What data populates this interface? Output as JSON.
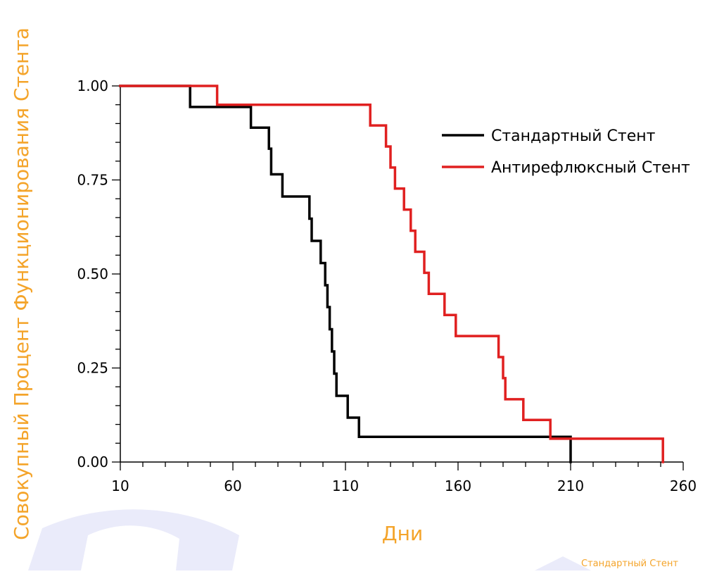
{
  "colors": {
    "axis_title": "#F4A42A",
    "standard": "#000000",
    "antireflux": "#E02020",
    "watermark": "#EAEBFA"
  },
  "footer_note": "Стандартный Стент",
  "chart_data": {
    "type": "line",
    "step": "post",
    "title": "",
    "xlabel": "Дни",
    "ylabel": "Совокупный Процент Функционирования Стента",
    "xlim": [
      10,
      260
    ],
    "ylim": [
      0,
      1
    ],
    "xticks": [
      10,
      60,
      110,
      160,
      210,
      260
    ],
    "xtick_labels": [
      "10",
      "60",
      "110",
      "160",
      "210",
      "260"
    ],
    "yticks": [
      0,
      0.25,
      0.5,
      0.75,
      1
    ],
    "ytick_labels": [
      "0.00",
      "0.25",
      "0.50",
      "0.75",
      "1.00"
    ],
    "grid": false,
    "legend_position": "upper-right",
    "series": [
      {
        "name": "Стандартный Стент",
        "color_key": "standard",
        "x": [
          10,
          41,
          68,
          76,
          77,
          82,
          94,
          95,
          99,
          101,
          102,
          103,
          104,
          105,
          106,
          111,
          116,
          210,
          210
        ],
        "y": [
          1.0,
          0.944,
          0.889,
          0.833,
          0.765,
          0.706,
          0.647,
          0.588,
          0.529,
          0.47,
          0.412,
          0.353,
          0.294,
          0.235,
          0.176,
          0.118,
          0.067,
          0.067,
          0.0
        ]
      },
      {
        "name": "Антирефлюксный Стент",
        "color_key": "antireflux",
        "x": [
          10,
          53,
          121,
          128,
          130,
          132,
          136,
          139,
          141,
          145,
          147,
          154,
          159,
          178,
          180,
          181,
          189,
          201,
          251,
          251
        ],
        "y": [
          1.0,
          0.95,
          0.895,
          0.839,
          0.783,
          0.727,
          0.671,
          0.615,
          0.559,
          0.503,
          0.447,
          0.391,
          0.335,
          0.279,
          0.223,
          0.167,
          0.112,
          0.062,
          0.062,
          0.0
        ]
      }
    ]
  }
}
